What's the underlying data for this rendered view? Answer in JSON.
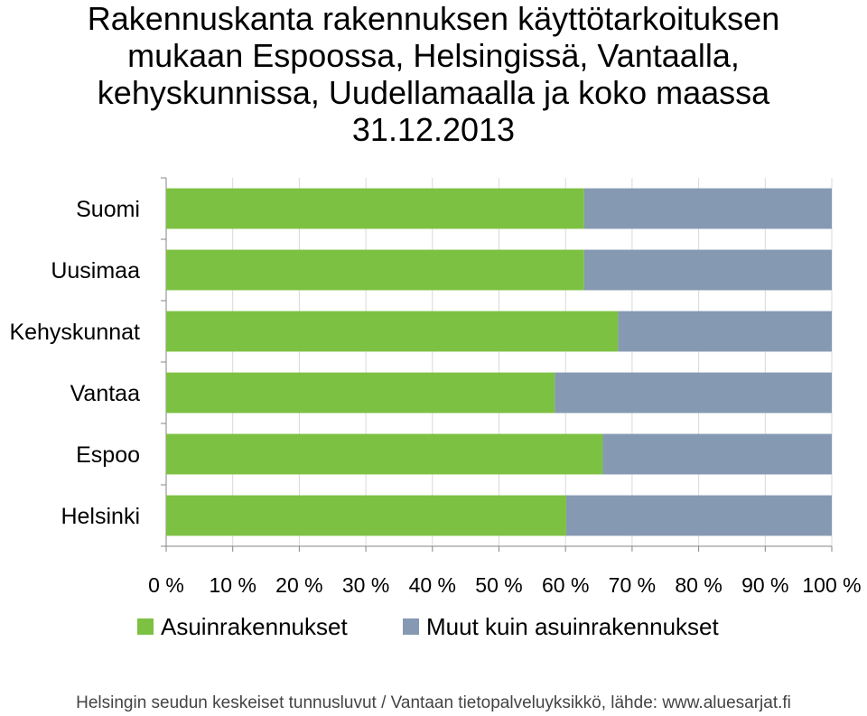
{
  "chart_data": {
    "type": "bar",
    "orientation": "horizontal",
    "stacked": "percent",
    "title_lines": [
      "Rakennuskanta rakennuksen käyttötarkoituksen",
      "mukaan Espoossa, Helsingissä, Vantaalla,",
      "kehyskunnissa, Uudellamaalla ja koko maassa",
      "31.12.2013"
    ],
    "categories": [
      "Suomi",
      "Uusimaa",
      "Kehyskunnat",
      "Vantaa",
      "Espoo",
      "Helsinki"
    ],
    "series": [
      {
        "name": "Asuinrakennukset",
        "color": "#7dc143",
        "values": [
          62.8,
          62.8,
          67.9,
          58.4,
          65.6,
          60.1
        ]
      },
      {
        "name": "Muut kuin asuinrakennukset",
        "color": "#8599b2",
        "values": [
          37.2,
          37.2,
          32.1,
          41.6,
          34.4,
          39.9
        ]
      }
    ],
    "x_ticks": [
      "0 %",
      "10 %",
      "20 %",
      "30 %",
      "40 %",
      "50 %",
      "60 %",
      "70 %",
      "80 %",
      "90 %",
      "100 %"
    ],
    "xlim": [
      0,
      100
    ],
    "grid": "vertical",
    "grid_color": "#d9d9d9",
    "legend_position": "bottom"
  },
  "source": "Helsingin seudun keskeiset tunnusluvut / Vantaan tietopalveluyksikkö, lähde: www.aluesarjat.fi"
}
